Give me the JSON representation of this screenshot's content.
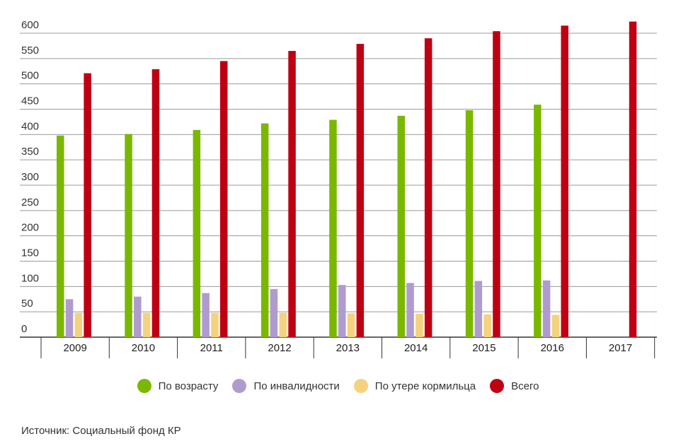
{
  "chart_data": {
    "type": "bar",
    "categories": [
      "2009",
      "2010",
      "2011",
      "2012",
      "2013",
      "2014",
      "2015",
      "2016",
      "2017"
    ],
    "series": [
      {
        "name": "По возрасту",
        "color": "#7ab800",
        "values": [
          398,
          401,
          409,
          422,
          429,
          437,
          448,
          459,
          null
        ]
      },
      {
        "name": "По инвалидности",
        "color": "#b09bcf",
        "values": [
          75,
          80,
          87,
          95,
          103,
          107,
          111,
          112,
          null
        ]
      },
      {
        "name": "По утере кормильца",
        "color": "#f4d27e",
        "values": [
          48,
          48,
          48,
          48,
          47,
          46,
          45,
          44,
          null
        ]
      },
      {
        "name": "Всего",
        "color": "#bf0013",
        "values": [
          521,
          529,
          545,
          565,
          579,
          590,
          604,
          615,
          623
        ]
      }
    ],
    "ylim": [
      0,
      600
    ],
    "yticks": [
      "0",
      "50",
      "100",
      "150",
      "200",
      "250",
      "300",
      "350",
      "400",
      "450",
      "500",
      "550",
      "600"
    ],
    "grid": true,
    "legend_position": "bottom"
  },
  "source": "Источник: Социальный фонд КР"
}
